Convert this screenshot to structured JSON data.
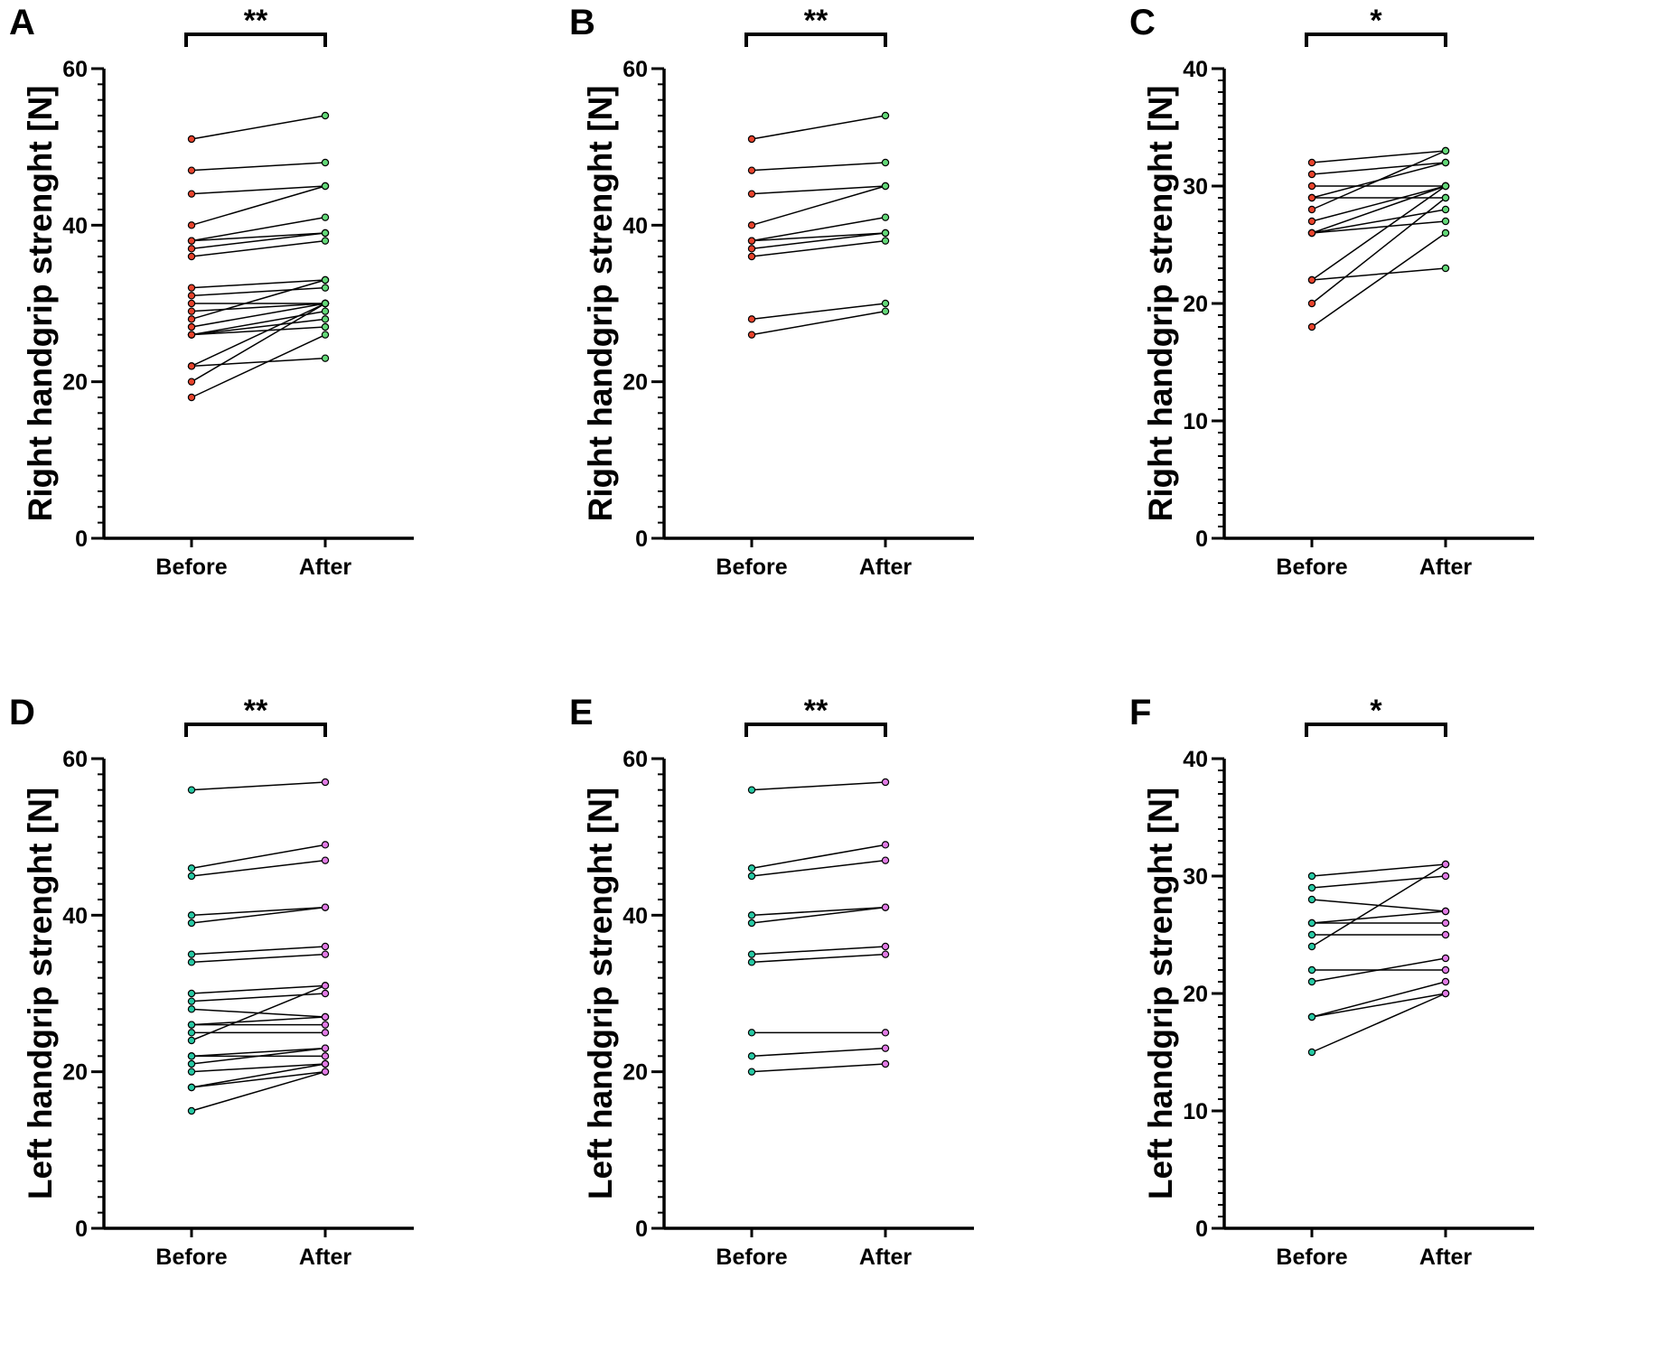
{
  "colors": {
    "right_before": "#e8432c",
    "right_after": "#63d978",
    "left_before": "#26c9a4",
    "left_after": "#e27be6"
  },
  "chart_data": [
    {
      "panel": "A",
      "type": "line",
      "subtype": "paired-dot",
      "ylabel": "Right handgrip strenght [N]",
      "categories": [
        "Before",
        "After"
      ],
      "ylim": [
        0,
        60
      ],
      "yticks": [
        0,
        20,
        40,
        60
      ],
      "minor_step": 2,
      "significance": "**",
      "before_color": "#e8432c",
      "after_color": "#63d978",
      "pairs": [
        [
          51,
          54
        ],
        [
          47,
          48
        ],
        [
          44,
          45
        ],
        [
          40,
          45
        ],
        [
          38,
          41
        ],
        [
          38,
          39
        ],
        [
          37,
          39
        ],
        [
          36,
          38
        ],
        [
          32,
          33
        ],
        [
          31,
          32
        ],
        [
          30,
          30
        ],
        [
          29,
          30
        ],
        [
          28,
          33
        ],
        [
          27,
          30
        ],
        [
          26,
          29
        ],
        [
          26,
          28
        ],
        [
          26,
          27
        ],
        [
          22,
          30
        ],
        [
          22,
          23
        ],
        [
          20,
          30
        ],
        [
          18,
          26
        ]
      ]
    },
    {
      "panel": "B",
      "type": "line",
      "subtype": "paired-dot",
      "ylabel": "Right handgrip strenght [N]",
      "categories": [
        "Before",
        "After"
      ],
      "ylim": [
        0,
        60
      ],
      "yticks": [
        0,
        20,
        40,
        60
      ],
      "minor_step": 2,
      "significance": "**",
      "before_color": "#e8432c",
      "after_color": "#63d978",
      "pairs": [
        [
          51,
          54
        ],
        [
          47,
          48
        ],
        [
          44,
          45
        ],
        [
          40,
          45
        ],
        [
          38,
          41
        ],
        [
          38,
          39
        ],
        [
          37,
          39
        ],
        [
          36,
          38
        ],
        [
          28,
          30
        ],
        [
          26,
          29
        ]
      ]
    },
    {
      "panel": "C",
      "type": "line",
      "subtype": "paired-dot",
      "ylabel": "Right handgrip strenght [N]",
      "categories": [
        "Before",
        "After"
      ],
      "ylim": [
        0,
        40
      ],
      "yticks": [
        0,
        10,
        20,
        30,
        40
      ],
      "minor_step": 1,
      "significance": "*",
      "before_color": "#e8432c",
      "after_color": "#63d978",
      "pairs": [
        [
          32,
          33
        ],
        [
          31,
          32
        ],
        [
          30,
          30
        ],
        [
          29,
          29
        ],
        [
          29,
          32
        ],
        [
          28,
          33
        ],
        [
          27,
          30
        ],
        [
          26,
          30
        ],
        [
          26,
          28
        ],
        [
          26,
          27
        ],
        [
          22,
          30
        ],
        [
          22,
          23
        ],
        [
          20,
          29
        ],
        [
          18,
          26
        ]
      ]
    },
    {
      "panel": "D",
      "type": "line",
      "subtype": "paired-dot",
      "ylabel": "Left handgrip strenght [N]",
      "categories": [
        "Before",
        "After"
      ],
      "ylim": [
        0,
        60
      ],
      "yticks": [
        0,
        20,
        40,
        60
      ],
      "minor_step": 2,
      "significance": "**",
      "before_color": "#26c9a4",
      "after_color": "#e27be6",
      "pairs": [
        [
          56,
          57
        ],
        [
          46,
          49
        ],
        [
          45,
          47
        ],
        [
          40,
          41
        ],
        [
          39,
          41
        ],
        [
          35,
          36
        ],
        [
          34,
          35
        ],
        [
          30,
          31
        ],
        [
          29,
          30
        ],
        [
          28,
          27
        ],
        [
          26,
          27
        ],
        [
          26,
          26
        ],
        [
          25,
          25
        ],
        [
          24,
          31
        ],
        [
          22,
          23
        ],
        [
          22,
          22
        ],
        [
          21,
          23
        ],
        [
          20,
          21
        ],
        [
          18,
          21
        ],
        [
          18,
          20
        ],
        [
          15,
          20
        ]
      ]
    },
    {
      "panel": "E",
      "type": "line",
      "subtype": "paired-dot",
      "ylabel": "Left handgrip strenght [N]",
      "categories": [
        "Before",
        "After"
      ],
      "ylim": [
        0,
        60
      ],
      "yticks": [
        0,
        20,
        40,
        60
      ],
      "minor_step": 2,
      "significance": "**",
      "before_color": "#26c9a4",
      "after_color": "#e27be6",
      "pairs": [
        [
          56,
          57
        ],
        [
          46,
          49
        ],
        [
          45,
          47
        ],
        [
          40,
          41
        ],
        [
          39,
          41
        ],
        [
          35,
          36
        ],
        [
          34,
          35
        ],
        [
          25,
          25
        ],
        [
          22,
          23
        ],
        [
          20,
          21
        ]
      ]
    },
    {
      "panel": "F",
      "type": "line",
      "subtype": "paired-dot",
      "ylabel": "Left handgrip strenght [N]",
      "categories": [
        "Before",
        "After"
      ],
      "ylim": [
        0,
        40
      ],
      "yticks": [
        0,
        10,
        20,
        30,
        40
      ],
      "minor_step": 1,
      "significance": "*",
      "before_color": "#26c9a4",
      "after_color": "#e27be6",
      "pairs": [
        [
          30,
          31
        ],
        [
          29,
          30
        ],
        [
          28,
          27
        ],
        [
          26,
          27
        ],
        [
          26,
          26
        ],
        [
          25,
          25
        ],
        [
          24,
          31
        ],
        [
          22,
          22
        ],
        [
          21,
          23
        ],
        [
          18,
          21
        ],
        [
          18,
          20
        ],
        [
          15,
          20
        ]
      ]
    }
  ]
}
